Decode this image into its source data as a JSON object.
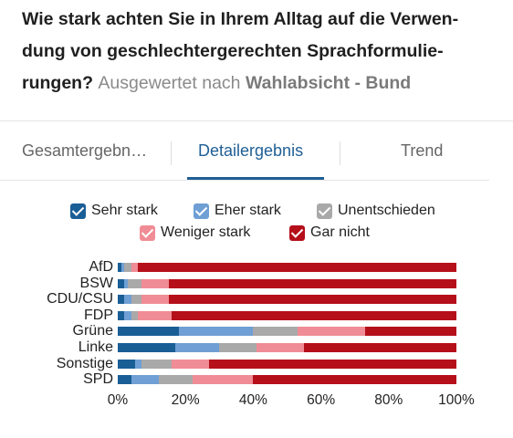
{
  "question": {
    "line1": "Wie stark achten Sie in Ihrem Alltag auf die Verwen-",
    "line2": "dung von geschlechtergerechten Sprachformulie-",
    "line3_bold": "rungen?",
    "evaluated_by": "Ausgewertet nach",
    "group": "Wahlabsicht - Bund"
  },
  "tabs": [
    {
      "label": "Gesamtergebn…",
      "active": false
    },
    {
      "label": "Detailergebnis",
      "active": true
    },
    {
      "label": "Trend",
      "active": false
    }
  ],
  "colors": {
    "sehr_stark": "#1a5e96",
    "eher_stark": "#6f9fd4",
    "unentschieden": "#a9a9a9",
    "weniger_stark": "#f08c95",
    "gar_nicht": "#b50f1a",
    "accent": "#1f5f95"
  },
  "chart_data": {
    "type": "bar",
    "orientation": "horizontal",
    "stacked": true,
    "categories": [
      "AfD",
      "BSW",
      "CDU/CSU",
      "FDP",
      "Grüne",
      "Linke",
      "Sonstige",
      "SPD"
    ],
    "series": [
      {
        "name": "Sehr stark",
        "color": "#1a5e96",
        "values": [
          1,
          2,
          2,
          2,
          18,
          17,
          5,
          4
        ]
      },
      {
        "name": "Eher stark",
        "color": "#6f9fd4",
        "values": [
          1,
          1,
          2,
          2,
          22,
          13,
          2,
          8
        ]
      },
      {
        "name": "Unentschieden",
        "color": "#a9a9a9",
        "values": [
          2,
          4,
          3,
          2,
          13,
          11,
          9,
          10
        ]
      },
      {
        "name": "Weniger stark",
        "color": "#f08c95",
        "values": [
          2,
          8,
          8,
          10,
          20,
          14,
          11,
          18
        ]
      },
      {
        "name": "Gar nicht",
        "color": "#b50f1a",
        "values": [
          94,
          85,
          85,
          84,
          27,
          45,
          73,
          60
        ]
      }
    ],
    "xlim": [
      0,
      100
    ],
    "xticks": [
      "0%",
      "20%",
      "40%",
      "60%",
      "80%",
      "100%"
    ],
    "legend_position": "top",
    "grid": false
  }
}
